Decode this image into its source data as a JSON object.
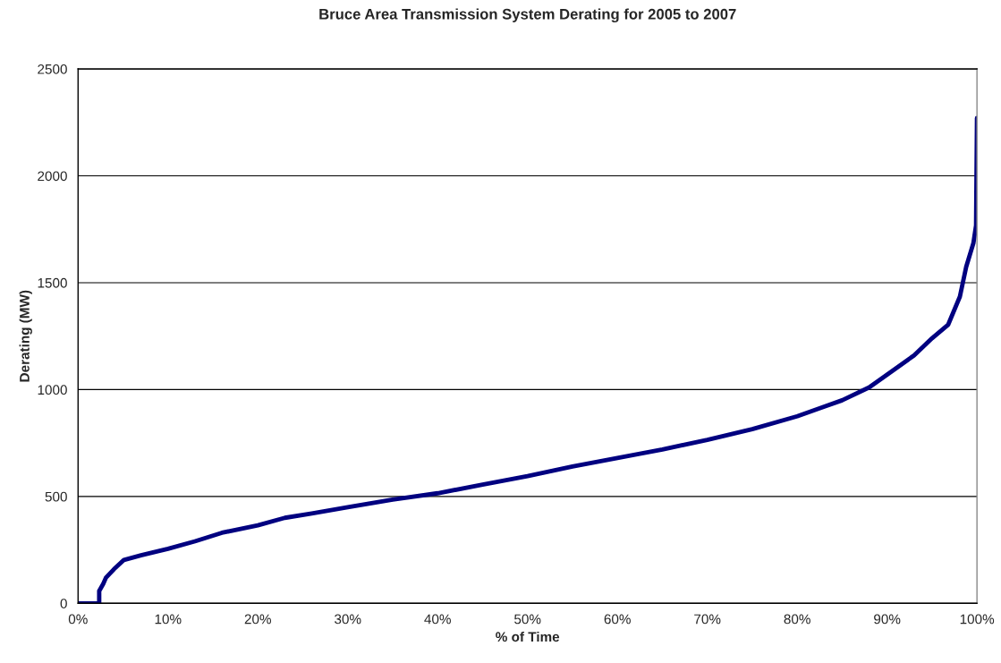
{
  "chart_data": {
    "type": "line",
    "title": "Bruce Area Transmission System Derating for 2005 to 2007",
    "xlabel": "% of Time",
    "ylabel": "Derating (MW)",
    "x": [
      0,
      2.35,
      2.35,
      2.8,
      3.1,
      4.0,
      5.1,
      7,
      10,
      13,
      16,
      20,
      23,
      26,
      30,
      35,
      40,
      45,
      50,
      55,
      60,
      65,
      70,
      75,
      80,
      83,
      85,
      88,
      90,
      93,
      95,
      96.8,
      98.1,
      98.8,
      99.6,
      99.9,
      100
    ],
    "series": [
      {
        "color": "#000080",
        "values": [
          0,
          0,
          58,
          91,
          120,
          160,
          203,
          225,
          255,
          290,
          330,
          365,
          400,
          420,
          450,
          485,
          515,
          555,
          595,
          640,
          680,
          720,
          765,
          815,
          875,
          920,
          950,
          1010,
          1070,
          1160,
          1240,
          1304,
          1435,
          1574,
          1685,
          1768,
          2270
        ]
      }
    ],
    "xlim": [
      0,
      100
    ],
    "xticks": [
      {
        "value": 0,
        "label": "0%"
      },
      {
        "value": 10,
        "label": "10%"
      },
      {
        "value": 20,
        "label": "20%"
      },
      {
        "value": 30,
        "label": "30%"
      },
      {
        "value": 40,
        "label": "40%"
      },
      {
        "value": 50,
        "label": "50%"
      },
      {
        "value": 60,
        "label": "60%"
      },
      {
        "value": 70,
        "label": "70%"
      },
      {
        "value": 80,
        "label": "80%"
      },
      {
        "value": 90,
        "label": "90%"
      },
      {
        "value": 100,
        "label": "100%"
      }
    ],
    "ylim": [
      0,
      2500
    ],
    "yticks": [
      0,
      500,
      1000,
      1500,
      2000,
      2500
    ],
    "grid": "y",
    "marker": "none",
    "line_style": "solid"
  }
}
